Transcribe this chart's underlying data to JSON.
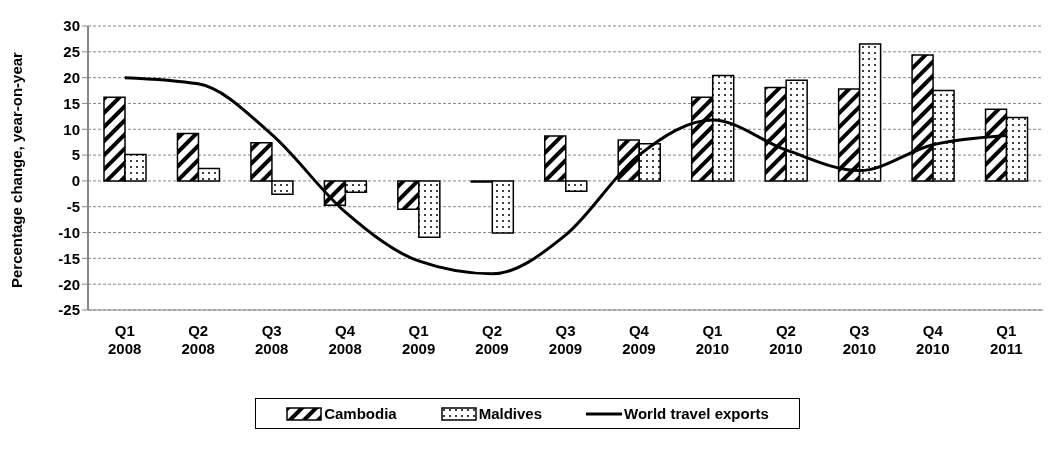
{
  "chart_data": {
    "type": "bar",
    "ylabel": "Percentage change, year-on-year",
    "categories": [
      "Q1\n2008",
      "Q2\n2008",
      "Q3\n2008",
      "Q4\n2008",
      "Q1\n2009",
      "Q2\n2009",
      "Q3\n2009",
      "Q4\n2009",
      "Q1\n2010",
      "Q2\n2010",
      "Q3\n2010",
      "Q4\n2010",
      "Q1\n2011"
    ],
    "series": [
      {
        "name": "Cambodia",
        "color": "#000000",
        "values": [
          16.2,
          9.2,
          7.4,
          -4.7,
          -5.5,
          -0.2,
          8.7,
          7.9,
          16.2,
          18.1,
          17.8,
          24.4,
          13.9
        ]
      },
      {
        "name": "Maldives",
        "color": "#000000",
        "values": [
          5.1,
          2.4,
          -2.6,
          -2.2,
          -10.9,
          -10.1,
          -2.0,
          7.2,
          20.4,
          19.5,
          26.5,
          17.5,
          12.3
        ]
      },
      {
        "name": "World travel exports",
        "type": "line",
        "color": "#000000",
        "values": [
          20,
          18.8,
          9,
          -6,
          -15.5,
          -18,
          -10.5,
          5,
          11.8,
          6,
          2,
          7,
          8.8
        ]
      }
    ],
    "ylim": [
      -25,
      30
    ],
    "yticks": [
      -25,
      -20,
      -15,
      -10,
      -5,
      0,
      5,
      10,
      15,
      20,
      25,
      30
    ],
    "grid": "y",
    "legend": "bottom",
    "marker": "none",
    "line_style": "solid"
  }
}
